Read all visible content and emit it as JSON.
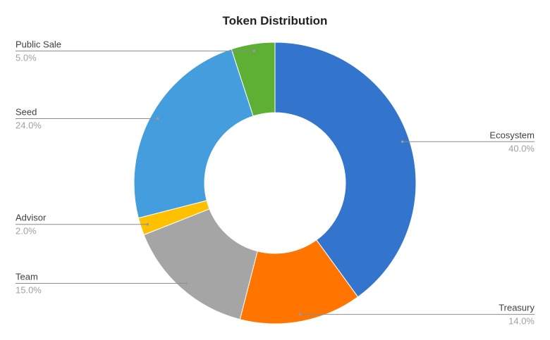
{
  "chart_data": {
    "type": "pie",
    "variant": "donut",
    "title": "Token Distribution",
    "categories": [
      "Ecosystem",
      "Treasury",
      "Team",
      "Advisor",
      "Seed",
      "Public Sale"
    ],
    "values": [
      40.0,
      14.0,
      15.0,
      2.0,
      24.0,
      5.0
    ],
    "labels": [
      "40.0%",
      "14.0%",
      "15.0%",
      "2.0%",
      "24.0%",
      "5.0%"
    ],
    "colors": [
      "#3374cc",
      "#ff7500",
      "#a5a5a5",
      "#ffc000",
      "#449ddc",
      "#5eb034"
    ],
    "start": "top",
    "direction": "clockwise",
    "legend": "none"
  }
}
